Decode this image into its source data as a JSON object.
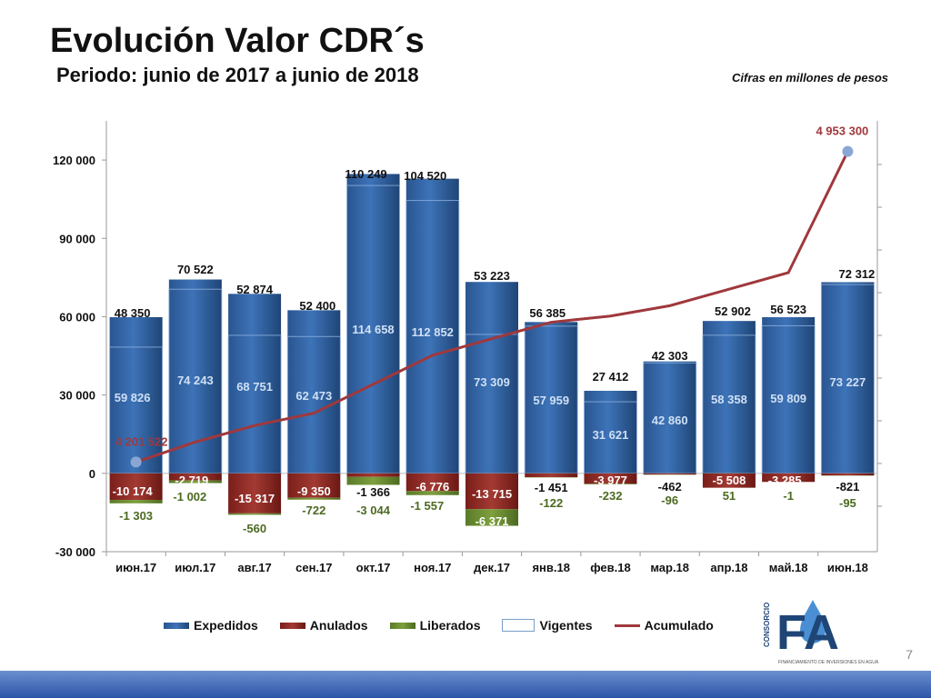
{
  "header": {
    "title": "Evolución Valor CDR´s",
    "subtitle": "Periodo:  junio de 2017 a junio de 2018",
    "note": "Cifras en millones de pesos"
  },
  "page_number": "7",
  "logo": {
    "text": "FA",
    "side": "CONSORCIO",
    "caption": "FINANCIAMIENTO DE INVERSIONES EN AGUA"
  },
  "colors": {
    "expedidos": "#2e5e9c",
    "anulados": "#8b2520",
    "liberados": "#6a8c30",
    "acumulado": "#a0383c",
    "marker": "#8aa7d4"
  },
  "chart_data": {
    "type": "bar",
    "categories": [
      "июн.17",
      "июл.17",
      "авг.17",
      "сен.17",
      "окт.17",
      "ноя.17",
      "дек.17",
      "янв.18",
      "фев.18",
      "мар.18",
      "апр.18",
      "май.18",
      "июн.18"
    ],
    "ylim": [
      -30000,
      135000
    ],
    "yticks": [
      "-30 000",
      "0",
      "30 000",
      "60 000",
      "90 000",
      "120 000"
    ],
    "yticks_values": [
      -30000,
      0,
      30000,
      60000,
      90000,
      120000
    ],
    "grid": false,
    "legend_position": "bottom",
    "series": [
      {
        "name": "Expedidos",
        "values": [
          59826,
          74243,
          68751,
          62473,
          114658,
          112852,
          73309,
          57959,
          31621,
          42860,
          58358,
          59809,
          73227
        ],
        "labels": [
          "59 826",
          "74 243",
          "68 751",
          "62 473",
          "114 658",
          "112 852",
          "73 309",
          "57 959",
          "31 621",
          "42 860",
          "58 358",
          "59 809",
          "73 227"
        ]
      },
      {
        "name": "Anulados",
        "values": [
          -10174,
          -2719,
          -15317,
          -9350,
          -1366,
          -6776,
          -13715,
          -1451,
          -3977,
          -462,
          -5508,
          -3285,
          -821
        ],
        "labels": [
          "-10 174",
          "-2 719",
          "-15 317",
          "-9 350",
          "-1 366",
          "-6 776",
          "-13 715",
          "-1 451",
          "-3 977",
          "-462",
          "-5 508",
          "-3 285",
          "-821"
        ]
      },
      {
        "name": "Liberados",
        "values": [
          -1303,
          -1002,
          -560,
          -722,
          -3044,
          -1557,
          -6371,
          -122,
          -232,
          -96,
          51,
          -1,
          -95
        ],
        "labels": [
          "-1 303",
          "-1 002",
          "-560",
          "-722",
          "-3 044",
          "-1 557",
          "-6 371",
          "-122",
          "-232",
          "-96",
          "51",
          "-1",
          "-95"
        ]
      },
      {
        "name": "Vigentes",
        "values": [
          48350,
          70522,
          52874,
          52400,
          110249,
          104520,
          53223,
          56385,
          27412,
          42303,
          52902,
          56523,
          72312
        ],
        "labels": [
          "48 350",
          "70 522",
          "52 874",
          "52 400",
          "110 249",
          "104 520",
          "53 223",
          "56 385",
          "27 412",
          "42 303",
          "52 902",
          "56 523",
          "72 312"
        ]
      },
      {
        "name": "Acumulado",
        "values": [
          4201522,
          4250000,
          4290000,
          4320000,
          4390000,
          4460000,
          4500000,
          4540000,
          4555000,
          4580000,
          4620000,
          4660000,
          4953300
        ],
        "labels": [
          "4 201 522",
          "",
          "",
          "",
          "",
          "",
          "",
          "",
          "",
          "",
          "",
          "",
          "4 953 300"
        ]
      }
    ]
  }
}
